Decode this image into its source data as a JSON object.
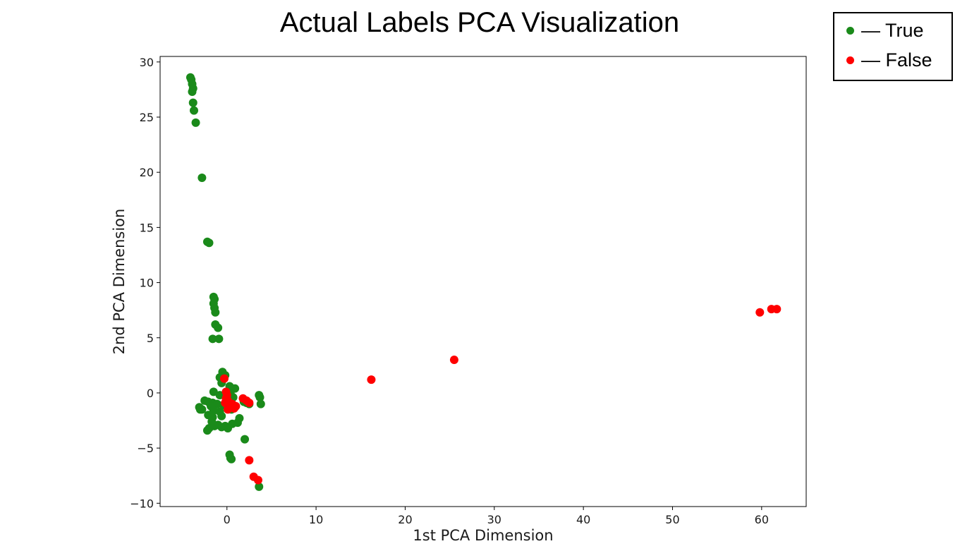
{
  "chart_data": {
    "type": "scatter",
    "title": "Actual Labels PCA Visualization",
    "xlabel": "1st PCA Dimension",
    "ylabel": "2nd PCA Dimension",
    "xlim": [
      -7.5,
      65
    ],
    "ylim": [
      -10.3,
      30.5
    ],
    "xticks": [
      0,
      10,
      20,
      30,
      40,
      50,
      60
    ],
    "yticks": [
      -10,
      -5,
      0,
      5,
      10,
      15,
      20,
      25,
      30
    ],
    "xtick_labels": [
      "0",
      "10",
      "20",
      "30",
      "40",
      "50",
      "60"
    ],
    "ytick_labels": [
      "−10",
      "−5",
      "0",
      "5",
      "10",
      "15",
      "20",
      "25",
      "30"
    ],
    "grid": false,
    "legend_position": "top-right, outside plot",
    "series": [
      {
        "name": "True",
        "color": "#1a8a1a",
        "points": [
          [
            -4.1,
            28.6
          ],
          [
            -4.0,
            28.4
          ],
          [
            -3.9,
            28.0
          ],
          [
            -3.8,
            27.6
          ],
          [
            -3.9,
            27.3
          ],
          [
            -3.8,
            26.3
          ],
          [
            -3.7,
            25.6
          ],
          [
            -3.5,
            24.5
          ],
          [
            -2.8,
            19.5
          ],
          [
            -2.2,
            13.7
          ],
          [
            -2.0,
            13.6
          ],
          [
            -1.5,
            8.7
          ],
          [
            -1.4,
            8.5
          ],
          [
            -1.5,
            8.1
          ],
          [
            -1.4,
            7.7
          ],
          [
            -1.3,
            7.3
          ],
          [
            -1.3,
            6.2
          ],
          [
            -1.0,
            5.9
          ],
          [
            -1.6,
            4.9
          ],
          [
            -0.9,
            4.9
          ],
          [
            -0.5,
            1.9
          ],
          [
            -0.2,
            1.6
          ],
          [
            -0.8,
            1.4
          ],
          [
            -0.6,
            0.9
          ],
          [
            0.3,
            0.6
          ],
          [
            0.9,
            0.4
          ],
          [
            -1.5,
            0.1
          ],
          [
            -0.8,
            -0.2
          ],
          [
            0.4,
            -0.1
          ],
          [
            0.7,
            -0.4
          ],
          [
            -2.5,
            -0.7
          ],
          [
            -2.1,
            -0.8
          ],
          [
            -1.6,
            -0.9
          ],
          [
            -1.1,
            -1.0
          ],
          [
            -0.4,
            -1.1
          ],
          [
            -3.1,
            -1.3
          ],
          [
            -2.8,
            -1.5
          ],
          [
            -3.0,
            -1.5
          ],
          [
            -1.8,
            -1.2
          ],
          [
            -1.5,
            -1.6
          ],
          [
            -0.8,
            -1.7
          ],
          [
            0.5,
            -1.5
          ],
          [
            0.9,
            -1.3
          ],
          [
            -2.1,
            -2.0
          ],
          [
            -1.6,
            -2.2
          ],
          [
            -0.6,
            -2.1
          ],
          [
            -1.7,
            -2.6
          ],
          [
            -1.0,
            -2.9
          ],
          [
            -0.2,
            -3.0
          ],
          [
            0.6,
            -2.8
          ],
          [
            1.2,
            -2.7
          ],
          [
            1.4,
            -2.3
          ],
          [
            -2.0,
            -3.2
          ],
          [
            -2.2,
            -3.4
          ],
          [
            -1.4,
            -3.0
          ],
          [
            -0.6,
            -3.1
          ],
          [
            0.1,
            -3.2
          ],
          [
            1.9,
            -0.8
          ],
          [
            2.2,
            -0.9
          ],
          [
            2.5,
            -1.0
          ],
          [
            3.6,
            -0.2
          ],
          [
            3.7,
            -0.4
          ],
          [
            3.8,
            -1.0
          ],
          [
            2.0,
            -4.2
          ],
          [
            0.3,
            -5.6
          ],
          [
            0.4,
            -5.9
          ],
          [
            0.5,
            -6.0
          ],
          [
            3.6,
            -8.5
          ]
        ]
      },
      {
        "name": "False",
        "color": "#ff0000",
        "points": [
          [
            -0.3,
            1.3
          ],
          [
            -0.1,
            0.1
          ],
          [
            0.0,
            -0.2
          ],
          [
            -0.1,
            -0.5
          ],
          [
            0.1,
            -0.7
          ],
          [
            -0.2,
            -0.9
          ],
          [
            0.2,
            -1.1
          ],
          [
            0.4,
            -1.3
          ],
          [
            0.1,
            -1.5
          ],
          [
            0.6,
            -1.0
          ],
          [
            0.8,
            -1.4
          ],
          [
            1.0,
            -1.2
          ],
          [
            1.8,
            -0.5
          ],
          [
            2.2,
            -0.7
          ],
          [
            2.5,
            -0.9
          ],
          [
            2.5,
            -6.1
          ],
          [
            3.0,
            -7.6
          ],
          [
            3.5,
            -7.9
          ],
          [
            16.2,
            1.2
          ],
          [
            25.5,
            3.0
          ],
          [
            59.8,
            7.3
          ],
          [
            61.1,
            7.6
          ],
          [
            61.7,
            7.6
          ]
        ]
      }
    ]
  },
  "legend": {
    "items": [
      {
        "label": "— True",
        "color": "#1a8a1a",
        "icon": "green-dot-icon"
      },
      {
        "label": "— False",
        "color": "#ff0000",
        "icon": "red-dot-icon"
      }
    ]
  }
}
